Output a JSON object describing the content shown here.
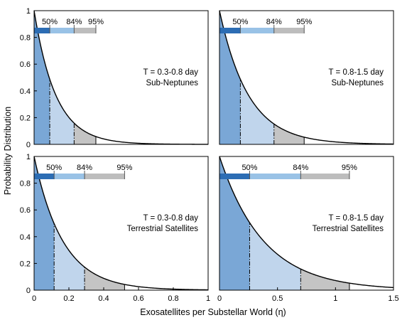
{
  "figure": {
    "xlabel": "Exosatellites per Substellar World (η)",
    "ylabel": "Probability Distribution"
  },
  "colors": {
    "dark_blue": "#2c6db4",
    "mid_blue": "#7aa7d6",
    "light_blue": "#c0d5ec",
    "grey": "#c4c4c4",
    "bar_light_blue": "#99c2e6",
    "bar_grey": "#bdbdbd"
  },
  "chart_data": [
    {
      "type": "area",
      "panel": "top-left",
      "annotation_line1": "T = 0.3-0.8 day",
      "annotation_line2": "Sub-Neptunes",
      "xlim": [
        0,
        1
      ],
      "ylim": [
        0,
        1
      ],
      "decay_scale": 0.125,
      "quantiles": [
        {
          "label": "50%",
          "value": 0.09
        },
        {
          "label": "84%",
          "value": 0.23
        },
        {
          "label": "95%",
          "value": 0.355
        }
      ],
      "xticks": [],
      "xtick_labels": [],
      "yticks": [
        0,
        0.2,
        0.4,
        0.6,
        0.8,
        1
      ],
      "ytick_labels": [
        "0",
        "0.2",
        "0.4",
        "0.6",
        "0.8",
        "1"
      ]
    },
    {
      "type": "area",
      "panel": "top-right",
      "annotation_line1": "T = 0.8-1.5 day",
      "annotation_line2": "Sub-Neptunes",
      "xlim": [
        0,
        1.5
      ],
      "ylim": [
        0,
        1
      ],
      "decay_scale": 0.25,
      "quantiles": [
        {
          "label": "50%",
          "value": 0.18
        },
        {
          "label": "84%",
          "value": 0.47
        },
        {
          "label": "95%",
          "value": 0.73
        }
      ],
      "xticks": [],
      "xtick_labels": [],
      "yticks": [],
      "ytick_labels": []
    },
    {
      "type": "area",
      "panel": "bottom-left",
      "annotation_line1": "T = 0.3-0.8 day",
      "annotation_line2": "Terrestrial Satellites",
      "xlim": [
        0,
        1
      ],
      "ylim": [
        0,
        1
      ],
      "decay_scale": 0.165,
      "quantiles": [
        {
          "label": "50%",
          "value": 0.115
        },
        {
          "label": "84%",
          "value": 0.29
        },
        {
          "label": "95%",
          "value": 0.52
        }
      ],
      "xticks": [
        0,
        0.2,
        0.4,
        0.6,
        0.8,
        1
      ],
      "xtick_labels": [
        "0",
        "0.2",
        "0.4",
        "0.6",
        "0.8",
        "1"
      ],
      "yticks": [
        0,
        0.2,
        0.4,
        0.6,
        0.8,
        1
      ],
      "ytick_labels": [
        "0",
        "0.2",
        "0.4",
        "0.6",
        "0.8",
        "1"
      ]
    },
    {
      "type": "area",
      "panel": "bottom-right",
      "annotation_line1": "T = 0.8-1.5 day",
      "annotation_line2": "Terrestrial Satellites",
      "xlim": [
        0,
        1.5
      ],
      "ylim": [
        0,
        1
      ],
      "decay_scale": 0.38,
      "quantiles": [
        {
          "label": "50%",
          "value": 0.26
        },
        {
          "label": "84%",
          "value": 0.7
        },
        {
          "label": "95%",
          "value": 1.12
        }
      ],
      "xticks": [
        0,
        0.5,
        1,
        1.5
      ],
      "xtick_labels": [
        "0",
        "0.5",
        "1",
        "1.5"
      ],
      "yticks": [],
      "ytick_labels": []
    }
  ]
}
